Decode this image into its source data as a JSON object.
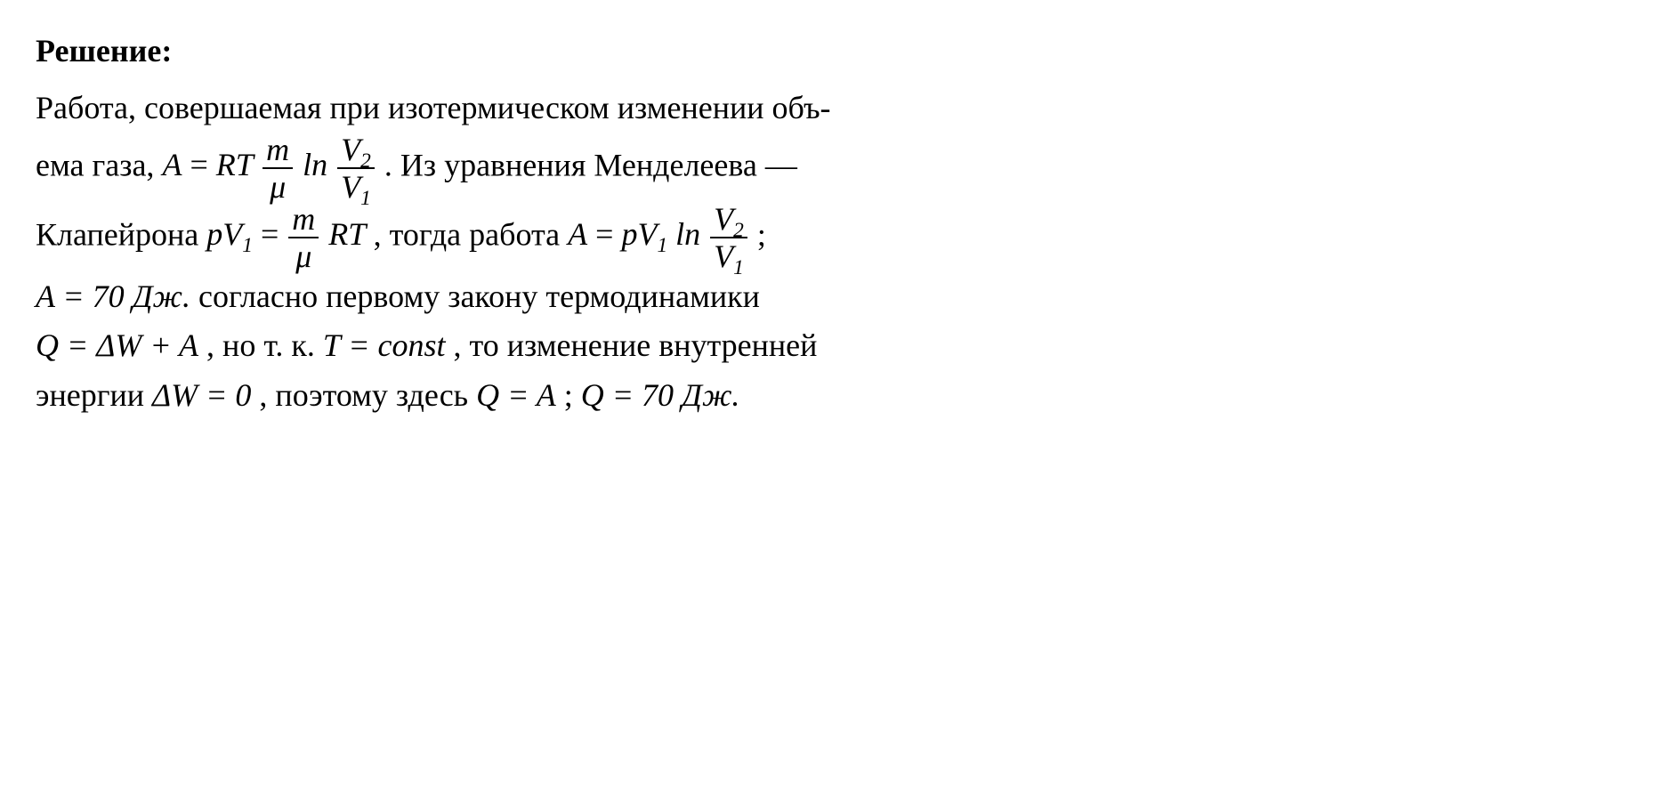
{
  "colors": {
    "text": "#000000",
    "background": "#ffffff",
    "rule": "#000000"
  },
  "typography": {
    "font_family": "Times New Roman, serif",
    "font_size_pt": 27,
    "line_height": 1.55,
    "style": "serif, math italic for variables"
  },
  "title": "Решение:",
  "body": {
    "p1_a": "Работа, совершаемая при изотермическом изменении объ-",
    "p1_b_pre": "ема газа,  ",
    "eq1": {
      "type": "inline-equation",
      "lhs": "A",
      "eq_sign": " = ",
      "rhs_before_frac1": "RT",
      "frac1": {
        "num": "m",
        "den": "μ"
      },
      "between": " ln ",
      "frac2": {
        "num": "V",
        "num_sub": "2",
        "den": "V",
        "den_sub": "1"
      }
    },
    "p1_b_post": ". Из уравнения Менделеева —",
    "p2_pre": "Клапейрона  ",
    "eq2": {
      "type": "inline-equation",
      "lhs": "pV",
      "lhs_sub": "1",
      "eq_sign": " = ",
      "frac": {
        "num": "m",
        "den": "μ"
      },
      "after": " RT"
    },
    "p2_mid": ",  тогда  работа  ",
    "eq3": {
      "type": "inline-equation",
      "lhs": "A",
      "eq_sign": " = ",
      "rhs_before": "pV",
      "rhs_before_sub": "1",
      "between": " ln ",
      "frac": {
        "num": "V",
        "num_sub": "2",
        "den": "V",
        "den_sub": "1"
      }
    },
    "p2_post": " ;",
    "p3_eqA": {
      "text": "A = 70 Дж."
    },
    "p3_mid": "  согласно  первому  закону  термодинамики",
    "p4_eqQ": {
      "text": "Q = ΔW + A"
    },
    "p4_mid1": ", но т. к. ",
    "p4_eqT": {
      "text": "T = const"
    },
    "p4_mid2": ", то изменение внутренней",
    "p5_pre": "энергии ",
    "p5_eqDW": {
      "text": "ΔW = 0"
    },
    "p5_mid": ", поэтому здесь ",
    "p5_eqQA": {
      "text": "Q = A"
    },
    "p5_sep": " ; ",
    "p5_eqQval": {
      "text": "Q = 70 Дж."
    }
  }
}
